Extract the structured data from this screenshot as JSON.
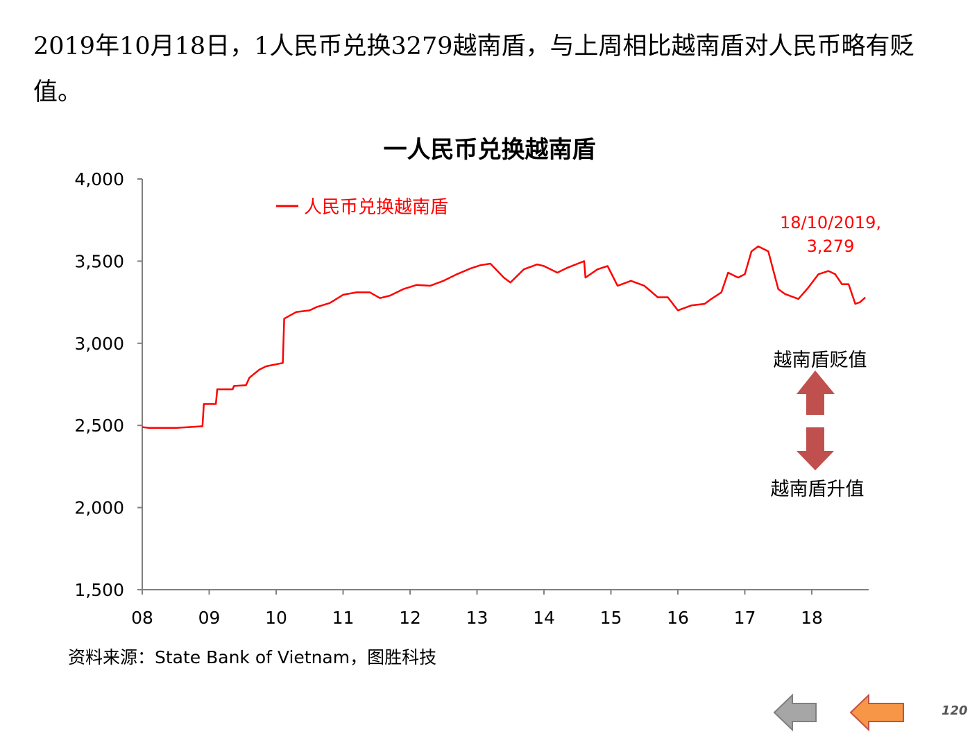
{
  "headline": "2019年10月18日，1人民币兑换3279越南盾，与上周相比越南盾对人民币略有贬值。",
  "source_note": "资料来源：State Bank of Vietnam，图胜科技",
  "page_number": "120",
  "nav": {
    "prev_icon": "arrow-left-icon",
    "next_icon": "arrow-left-icon"
  },
  "colors": {
    "series": "#ff0000",
    "arrow": "#c0504d",
    "nav_gray": "#a6a6a6",
    "nav_orange": "#f79646"
  },
  "chart_data": {
    "type": "line",
    "title": "一人民币兑换越南盾",
    "xlabel": "",
    "ylabel": "",
    "ylim": [
      1500,
      4000
    ],
    "yticks": [
      1500,
      2000,
      2500,
      3000,
      3500,
      4000
    ],
    "ytick_labels": [
      "1,500",
      "2,000",
      "2,500",
      "3,000",
      "3,500",
      "4,000"
    ],
    "xlim": [
      2008.0,
      2018.85
    ],
    "xticks": [
      2008,
      2009,
      2010,
      2011,
      2012,
      2013,
      2014,
      2015,
      2016,
      2017,
      2018
    ],
    "xtick_labels": [
      "08",
      "09",
      "10",
      "11",
      "12",
      "13",
      "14",
      "15",
      "16",
      "17",
      "18"
    ],
    "grid": false,
    "legend_position": "top-left",
    "series": [
      {
        "name": "人民币兑换越南盾",
        "x": [
          2008.0,
          2008.1,
          2008.3,
          2008.5,
          2008.7,
          2008.9,
          2008.92,
          2009.1,
          2009.12,
          2009.35,
          2009.37,
          2009.55,
          2009.6,
          2009.75,
          2009.85,
          2010.1,
          2010.12,
          2010.3,
          2010.5,
          2010.6,
          2010.8,
          2010.9,
          2011.0,
          2011.2,
          2011.4,
          2011.55,
          2011.7,
          2011.9,
          2012.1,
          2012.3,
          2012.5,
          2012.7,
          2012.9,
          2013.05,
          2013.2,
          2013.4,
          2013.5,
          2013.7,
          2013.9,
          2014.0,
          2014.2,
          2014.35,
          2014.6,
          2014.62,
          2014.8,
          2014.95,
          2015.1,
          2015.3,
          2015.5,
          2015.7,
          2015.85,
          2016.0,
          2016.2,
          2016.4,
          2016.5,
          2016.65,
          2016.75,
          2016.9,
          2017.0,
          2017.1,
          2017.2,
          2017.35,
          2017.5,
          2017.6,
          2017.8,
          2017.95,
          2018.1,
          2018.25,
          2018.35,
          2018.45,
          2018.55,
          2018.65,
          2018.72,
          2018.8
        ],
        "values": [
          2490,
          2485,
          2485,
          2485,
          2490,
          2495,
          2630,
          2630,
          2720,
          2720,
          2740,
          2745,
          2790,
          2840,
          2860,
          2880,
          3150,
          3190,
          3200,
          3220,
          3245,
          3270,
          3295,
          3310,
          3310,
          3275,
          3290,
          3330,
          3355,
          3350,
          3380,
          3420,
          3455,
          3475,
          3485,
          3400,
          3370,
          3450,
          3480,
          3470,
          3430,
          3460,
          3500,
          3400,
          3450,
          3470,
          3350,
          3380,
          3350,
          3280,
          3280,
          3200,
          3230,
          3240,
          3270,
          3310,
          3430,
          3400,
          3420,
          3560,
          3590,
          3560,
          3330,
          3300,
          3270,
          3340,
          3420,
          3440,
          3420,
          3360,
          3360,
          3240,
          3250,
          3279
        ]
      }
    ],
    "annotations": [
      {
        "text_line1": "18/10/2019,",
        "text_line2": "3,279",
        "x": 2018.8,
        "y": 3279,
        "color": "#ff0000"
      }
    ],
    "side_labels": {
      "top": "越南盾贬值",
      "bottom": "越南盾升值"
    }
  }
}
